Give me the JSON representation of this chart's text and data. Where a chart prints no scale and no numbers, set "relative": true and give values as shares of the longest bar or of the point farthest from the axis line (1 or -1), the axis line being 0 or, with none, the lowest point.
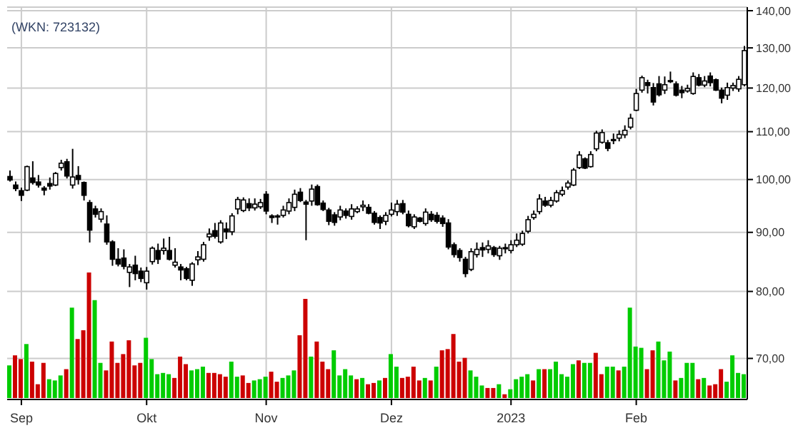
{
  "chart_data": [
    {
      "type": "candlestick",
      "title": "(WKN: 723132)",
      "color": "#000000",
      "log": true,
      "ylim": [
        64.5,
        141
      ],
      "yticks": [
        {
          "value": 70,
          "label": "70,00"
        },
        {
          "value": 80,
          "label": "80,00"
        },
        {
          "value": 90,
          "label": "90,00"
        },
        {
          "value": 100,
          "label": "100,00"
        },
        {
          "value": 110,
          "label": "110,00"
        },
        {
          "value": 120,
          "label": "120,00"
        },
        {
          "value": 130,
          "label": "130,00"
        },
        {
          "value": 140,
          "label": "140,00"
        }
      ],
      "grid": true,
      "categories": [
        null,
        null,
        "Sep",
        null,
        null,
        null,
        null,
        null,
        null,
        null,
        null,
        null,
        null,
        null,
        null,
        null,
        null,
        null,
        null,
        null,
        null,
        null,
        null,
        null,
        "Okt",
        null,
        null,
        null,
        null,
        null,
        null,
        null,
        null,
        null,
        null,
        null,
        null,
        null,
        null,
        null,
        null,
        null,
        null,
        null,
        null,
        "Nov",
        null,
        null,
        null,
        null,
        null,
        null,
        null,
        null,
        null,
        null,
        null,
        null,
        null,
        null,
        null,
        null,
        null,
        null,
        null,
        null,
        null,
        "Dez",
        null,
        null,
        null,
        null,
        null,
        null,
        null,
        null,
        null,
        null,
        null,
        null,
        null,
        null,
        null,
        null,
        null,
        null,
        null,
        null,
        "2023",
        null,
        null,
        null,
        null,
        null,
        null,
        null,
        null,
        null,
        null,
        null,
        null,
        null,
        null,
        null,
        null,
        null,
        null,
        null,
        null,
        null,
        "Feb",
        null,
        null,
        null,
        null,
        null,
        null,
        null,
        null,
        null,
        null,
        null,
        null,
        null,
        null,
        null,
        null,
        null,
        null,
        null
      ],
      "ohlc": [
        [
          100.6,
          101.8,
          99.6,
          99.9
        ],
        [
          98.9,
          99.6,
          97.7,
          98.2
        ],
        [
          97.8,
          98.4,
          95.8,
          96.9
        ],
        [
          97.9,
          102.8,
          97.7,
          102.6
        ],
        [
          100.3,
          103.7,
          99.0,
          99.4
        ],
        [
          99.5,
          100.9,
          98.4,
          98.9
        ],
        [
          98.3,
          98.7,
          96.9,
          97.9
        ],
        [
          99.2,
          100.4,
          98.0,
          98.7
        ],
        [
          98.9,
          101.5,
          98.7,
          101.2
        ],
        [
          102.4,
          104.0,
          101.8,
          103.3
        ],
        [
          103.6,
          104.2,
          100.2,
          100.7
        ],
        [
          98.9,
          106.3,
          98.2,
          100.5
        ],
        [
          100.8,
          102.7,
          99.0,
          100.0
        ],
        [
          99.4,
          99.6,
          95.9,
          96.9
        ],
        [
          95.5,
          96.0,
          88.2,
          90.4
        ],
        [
          94.3,
          94.9,
          92.7,
          93.3
        ],
        [
          92.4,
          94.4,
          91.8,
          93.8
        ],
        [
          91.5,
          93.1,
          87.8,
          88.3
        ],
        [
          88.3,
          88.6,
          84.2,
          85.3
        ],
        [
          85.3,
          87.2,
          84.1,
          84.5
        ],
        [
          85.5,
          87.0,
          83.6,
          84.1
        ],
        [
          83.1,
          84.5,
          80.7,
          84.0
        ],
        [
          84.3,
          85.9,
          81.8,
          82.9
        ],
        [
          83.3,
          83.9,
          81.5,
          82.1
        ],
        [
          81.4,
          84.0,
          80.3,
          83.3
        ],
        [
          84.9,
          87.5,
          84.4,
          87.2
        ],
        [
          86.8,
          88.0,
          84.5,
          85.3
        ],
        [
          86.8,
          88.9,
          86.1,
          87.2
        ],
        [
          86.8,
          89.2,
          85.1,
          85.3
        ],
        [
          84.3,
          87.2,
          83.9,
          84.8
        ],
        [
          84.0,
          84.5,
          81.8,
          83.5
        ],
        [
          83.7,
          84.0,
          81.8,
          82.1
        ],
        [
          81.8,
          84.8,
          80.9,
          84.5
        ],
        [
          85.2,
          86.7,
          84.3,
          85.7
        ],
        [
          85.3,
          88.3,
          84.9,
          87.8
        ],
        [
          89.2,
          90.7,
          88.5,
          89.7
        ],
        [
          90.3,
          91.7,
          88.9,
          89.3
        ],
        [
          88.3,
          92.2,
          88.0,
          91.7
        ],
        [
          90.6,
          91.8,
          88.8,
          90.1
        ],
        [
          90.1,
          93.5,
          89.5,
          93.0
        ],
        [
          94.3,
          96.6,
          93.3,
          96.1
        ],
        [
          94.0,
          96.5,
          93.7,
          96.0
        ],
        [
          95.3,
          96.3,
          93.9,
          94.5
        ],
        [
          94.5,
          96.3,
          94.0,
          95.2
        ],
        [
          94.7,
          96.2,
          94.3,
          95.5
        ],
        [
          97.1,
          97.7,
          93.3,
          93.9
        ],
        [
          93.0,
          93.3,
          91.7,
          92.7
        ],
        [
          93.0,
          93.3,
          91.4,
          92.8
        ],
        [
          93.1,
          94.9,
          92.7,
          94.1
        ],
        [
          93.9,
          96.3,
          93.3,
          95.5
        ],
        [
          94.6,
          98.0,
          93.9,
          97.1
        ],
        [
          97.5,
          98.3,
          95.6,
          95.9
        ],
        [
          95.6,
          96.0,
          88.6,
          95.2
        ],
        [
          95.8,
          99.0,
          94.9,
          98.1
        ],
        [
          98.6,
          99.0,
          94.9,
          95.1
        ],
        [
          95.4,
          95.9,
          93.9,
          94.2
        ],
        [
          94.1,
          94.5,
          91.3,
          92.0
        ],
        [
          93.2,
          93.7,
          91.2,
          91.8
        ],
        [
          92.8,
          94.9,
          92.2,
          94.1
        ],
        [
          93.9,
          94.4,
          92.5,
          93.1
        ],
        [
          92.9,
          95.2,
          92.3,
          94.3
        ],
        [
          93.8,
          94.8,
          93.5,
          94.3
        ],
        [
          94.7,
          95.9,
          93.9,
          95.0
        ],
        [
          94.6,
          95.2,
          93.3,
          93.5
        ],
        [
          93.5,
          93.9,
          91.4,
          91.8
        ],
        [
          92.7,
          93.1,
          90.6,
          91.7
        ],
        [
          92.0,
          93.7,
          91.3,
          93.1
        ],
        [
          93.3,
          95.5,
          92.9,
          94.1
        ],
        [
          93.8,
          96.0,
          93.0,
          95.2
        ],
        [
          95.3,
          96.0,
          93.3,
          93.7
        ],
        [
          93.3,
          94.0,
          90.9,
          91.2
        ],
        [
          91.0,
          93.3,
          90.6,
          92.8
        ],
        [
          92.6,
          92.8,
          91.8,
          92.0
        ],
        [
          91.6,
          94.4,
          91.2,
          93.7
        ],
        [
          93.3,
          93.9,
          91.9,
          92.3
        ],
        [
          93.1,
          93.7,
          91.6,
          92.0
        ],
        [
          92.6,
          93.1,
          91.0,
          91.6
        ],
        [
          91.7,
          92.4,
          87.0,
          87.4
        ],
        [
          87.8,
          88.2,
          85.6,
          86.1
        ],
        [
          86.8,
          87.2,
          84.9,
          85.6
        ],
        [
          85.3,
          85.7,
          82.3,
          82.9
        ],
        [
          83.6,
          87.2,
          83.3,
          86.6
        ],
        [
          86.1,
          88.2,
          85.6,
          87.0
        ],
        [
          87.3,
          88.2,
          85.7,
          86.9
        ],
        [
          87.0,
          88.6,
          86.3,
          87.6
        ],
        [
          87.3,
          87.6,
          85.7,
          86.1
        ],
        [
          85.9,
          87.6,
          85.2,
          87.2
        ],
        [
          87.3,
          88.0,
          86.3,
          87.1
        ],
        [
          86.8,
          88.6,
          86.3,
          87.8
        ],
        [
          87.8,
          89.8,
          87.4,
          88.6
        ],
        [
          87.9,
          90.3,
          87.6,
          89.8
        ],
        [
          90.2,
          93.0,
          89.8,
          92.3
        ],
        [
          92.7,
          94.0,
          92.3,
          93.3
        ],
        [
          93.8,
          97.1,
          93.3,
          96.2
        ],
        [
          95.8,
          96.6,
          94.7,
          95.0
        ],
        [
          95.0,
          96.6,
          94.6,
          95.9
        ],
        [
          95.8,
          97.9,
          95.5,
          97.4
        ],
        [
          97.1,
          98.6,
          96.7,
          97.8
        ],
        [
          98.5,
          99.8,
          98.0,
          99.3
        ],
        [
          98.9,
          102.3,
          98.7,
          101.9
        ],
        [
          102.4,
          105.8,
          102.1,
          105.0
        ],
        [
          104.2,
          104.5,
          102.1,
          102.3
        ],
        [
          102.6,
          105.8,
          102.4,
          105.1
        ],
        [
          106.3,
          110.2,
          105.8,
          109.7
        ],
        [
          107.7,
          110.5,
          107.4,
          109.8
        ],
        [
          107.6,
          108.2,
          105.8,
          106.4
        ],
        [
          108.1,
          109.6,
          107.3,
          108.3
        ],
        [
          108.6,
          110.3,
          107.9,
          109.4
        ],
        [
          109.3,
          111.4,
          108.6,
          110.3
        ],
        [
          111.0,
          114.0,
          110.5,
          113.0
        ],
        [
          114.8,
          119.8,
          114.6,
          118.7
        ],
        [
          119.5,
          123.0,
          118.9,
          122.5
        ],
        [
          121.3,
          122.0,
          118.7,
          120.6
        ],
        [
          120.1,
          121.2,
          115.9,
          116.7
        ],
        [
          121.0,
          122.9,
          118.0,
          118.4
        ],
        [
          119.5,
          122.8,
          118.6,
          120.8
        ],
        [
          121.6,
          124.0,
          121.2,
          121.8
        ],
        [
          121.0,
          121.6,
          118.0,
          118.3
        ],
        [
          119.5,
          120.5,
          117.6,
          118.9
        ],
        [
          119.3,
          120.8,
          118.9,
          119.9
        ],
        [
          118.7,
          123.8,
          118.4,
          122.8
        ],
        [
          122.5,
          123.4,
          120.4,
          120.7
        ],
        [
          120.7,
          122.9,
          120.2,
          121.7
        ],
        [
          122.9,
          123.8,
          120.4,
          121.3
        ],
        [
          122.0,
          122.3,
          119.3,
          119.5
        ],
        [
          119.5,
          120.1,
          116.4,
          117.6
        ],
        [
          118.3,
          121.3,
          117.2,
          120.1
        ],
        [
          120.0,
          121.3,
          119.3,
          120.6
        ],
        [
          119.8,
          122.9,
          119.1,
          122.1
        ],
        [
          120.8,
          130.5,
          120.4,
          129.3
        ]
      ]
    },
    {
      "type": "bar",
      "relative": true,
      "tick_labels": false,
      "categories": [
        null,
        null,
        null,
        null,
        null,
        null,
        null,
        null,
        null,
        null,
        null,
        null,
        null,
        null,
        null,
        null,
        null,
        null,
        null,
        null,
        null,
        null,
        null,
        null,
        null,
        null,
        null,
        null,
        null,
        null,
        null,
        null,
        null,
        null,
        null,
        null,
        null,
        null,
        null,
        null,
        null,
        null,
        null,
        null,
        null,
        null,
        null,
        null,
        null,
        null,
        null,
        null,
        null,
        null,
        null,
        null,
        null,
        null,
        null,
        null,
        null,
        null,
        null,
        null,
        null,
        null,
        null,
        null,
        null,
        null,
        null,
        null,
        null,
        null,
        null,
        null,
        null,
        null,
        null,
        null,
        null,
        null,
        null,
        null,
        null,
        null,
        null,
        null,
        null,
        null,
        null,
        null,
        null,
        null,
        null,
        null,
        null,
        null,
        null,
        null,
        null,
        null,
        null,
        null,
        null,
        null,
        null,
        null,
        null,
        null,
        null,
        null,
        null,
        null,
        null,
        null,
        null,
        null,
        null,
        null,
        null,
        null,
        null,
        null,
        null,
        null,
        null,
        null,
        null,
        null
      ],
      "values": [
        0.26,
        0.34,
        0.31,
        0.43,
        0.29,
        0.11,
        0.28,
        0.15,
        0.14,
        0.18,
        0.23,
        0.72,
        0.47,
        0.54,
        1,
        0.78,
        0.28,
        0.22,
        0.45,
        0.28,
        0.35,
        0.46,
        0.26,
        0.28,
        0.48,
        0.31,
        0.19,
        0.2,
        0.19,
        0.16,
        0.33,
        0.27,
        0.22,
        0.23,
        0.25,
        0.2,
        0.2,
        0.19,
        0.17,
        0.29,
        0.17,
        0.18,
        0.12,
        0.14,
        0.15,
        0.17,
        0.21,
        0.13,
        0.16,
        0.18,
        0.22,
        0.5,
        0.79,
        0.33,
        0.45,
        0.29,
        0.23,
        0.38,
        0.18,
        0.23,
        0.18,
        0.15,
        0.16,
        0.11,
        0.12,
        0.14,
        0.16,
        0.35,
        0.25,
        0.16,
        0.17,
        0.25,
        0.14,
        0.16,
        0.14,
        0.25,
        0.38,
        0.39,
        0.51,
        0.29,
        0.32,
        0.22,
        0.17,
        0.1,
        0.08,
        0.08,
        0.11,
        0.03,
        0.07,
        0.15,
        0.17,
        0.19,
        0.14,
        0.23,
        0.23,
        0.23,
        0.29,
        0.19,
        0.17,
        0.27,
        0.3,
        0.28,
        0.28,
        0.36,
        0.19,
        0.25,
        0.25,
        0.22,
        0.25,
        0.72,
        0.41,
        0.4,
        0.23,
        0.38,
        0.45,
        0.3,
        0.37,
        0.14,
        0.16,
        0.28,
        0.28,
        0.15,
        0.16,
        0.1,
        0.11,
        0.23,
        0.13,
        0.34,
        0.2,
        0.19
      ],
      "colors": [
        "#00cc00",
        "#cc0000",
        "#cc0000",
        "#00cc00",
        "#cc0000",
        "#cc0000",
        "#cc0000",
        "#00cc00",
        "#00cc00",
        "#00cc00",
        "#cc0000",
        "#00cc00",
        "#cc0000",
        "#cc0000",
        "#cc0000",
        "#00cc00",
        "#00cc00",
        "#cc0000",
        "#cc0000",
        "#cc0000",
        "#cc0000",
        "#cc0000",
        "#cc0000",
        "#cc0000",
        "#00cc00",
        "#00cc00",
        "#00cc00",
        "#00cc00",
        "#00cc00",
        "#cc0000",
        "#cc0000",
        "#cc0000",
        "#00cc00",
        "#00cc00",
        "#00cc00",
        "#cc0000",
        "#cc0000",
        "#cc0000",
        "#cc0000",
        "#00cc00",
        "#00cc00",
        "#cc0000",
        "#cc0000",
        "#00cc00",
        "#00cc00",
        "#00cc00",
        "#cc0000",
        "#cc0000",
        "#00cc00",
        "#00cc00",
        "#00cc00",
        "#cc0000",
        "#cc0000",
        "#00cc00",
        "#cc0000",
        "#cc0000",
        "#cc0000",
        "#00cc00",
        "#00cc00",
        "#00cc00",
        "#00cc00",
        "#cc0000",
        "#00cc00",
        "#cc0000",
        "#cc0000",
        "#00cc00",
        "#cc0000",
        "#00cc00",
        "#00cc00",
        "#cc0000",
        "#cc0000",
        "#cc0000",
        "#cc0000",
        "#00cc00",
        "#cc0000",
        "#00cc00",
        "#cc0000",
        "#cc0000",
        "#cc0000",
        "#cc0000",
        "#cc0000",
        "#00cc00",
        "#00cc00",
        "#00cc00",
        "#cc0000",
        "#cc0000",
        "#00cc00",
        "#cc0000",
        "#00cc00",
        "#00cc00",
        "#00cc00",
        "#00cc00",
        "#cc0000",
        "#00cc00",
        "#cc0000",
        "#00cc00",
        "#00cc00",
        "#00cc00",
        "#00cc00",
        "#00cc00",
        "#cc0000",
        "#00cc00",
        "#00cc00",
        "#cc0000",
        "#cc0000",
        "#00cc00",
        "#00cc00",
        "#cc0000",
        "#00cc00",
        "#00cc00",
        "#00cc00",
        "#00cc00",
        "#cc0000",
        "#cc0000",
        "#00cc00",
        "#00cc00",
        "#00cc00",
        "#cc0000",
        "#00cc00",
        "#00cc00",
        "#00cc00",
        "#cc0000",
        "#00cc00",
        "#cc0000",
        "#cc0000",
        "#cc0000",
        "#00cc00",
        "#00cc00",
        "#00cc00",
        "#00cc00"
      ]
    }
  ]
}
